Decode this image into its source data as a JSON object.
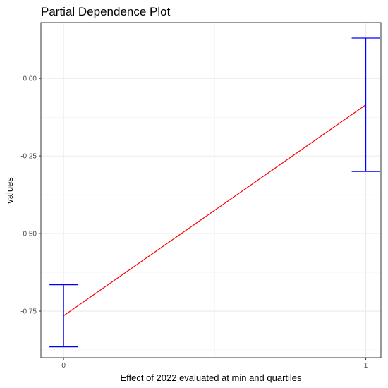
{
  "chart_data": {
    "type": "line",
    "title": "Partial Dependence Plot",
    "xlabel": "Effect of 2022 evaluated at min and quartiles",
    "ylabel": "values",
    "x": [
      0,
      1
    ],
    "x_ticks": [
      "0",
      "1"
    ],
    "y_ticks": [
      "0.00",
      "-0.25",
      "-0.50",
      "-0.75"
    ],
    "y_tick_values": [
      0.0,
      -0.25,
      -0.5,
      -0.75
    ],
    "xlim": [
      -0.075,
      1.05
    ],
    "ylim": [
      -0.9,
      0.18
    ],
    "series": [
      {
        "values": [
          -0.765,
          -0.085
        ],
        "lower": [
          -0.865,
          -0.3
        ],
        "upper": [
          -0.665,
          0.13
        ]
      }
    ],
    "line_color": "#ff0000",
    "errorbar_color": "#0000ff",
    "grid": true,
    "legend": "none"
  }
}
